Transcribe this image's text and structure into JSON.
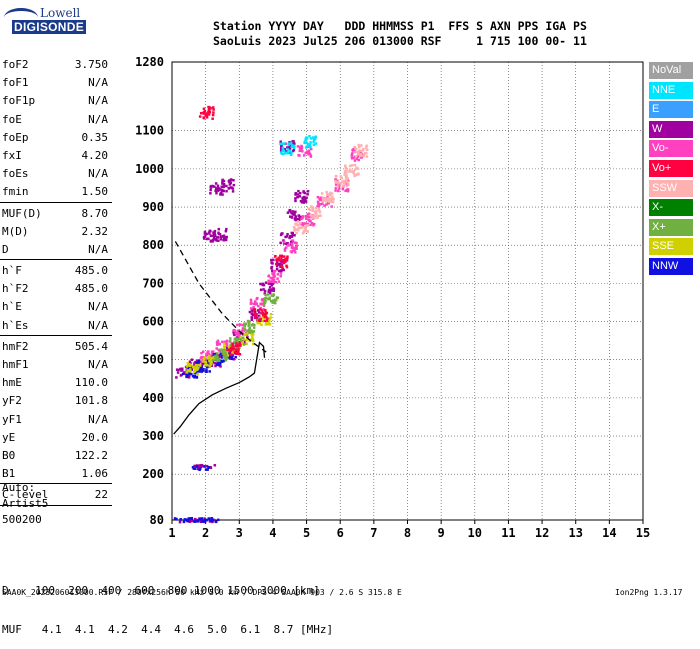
{
  "logo": {
    "top": "Lowell",
    "bottom": "DIGISONDE"
  },
  "header": {
    "line1": "Station YYYY DAY   DDD HHMMSS P1  FFS S AXN PPS IGA PS",
    "line2": "SaoLuis 2023 Jul25 206 013000 RSF     1 715 100 00- 11"
  },
  "params": [
    {
      "k": "foF2",
      "v": "3.750"
    },
    {
      "k": "foF1",
      "v": "N/A"
    },
    {
      "k": "foF1p",
      "v": "N/A"
    },
    {
      "k": "foE",
      "v": "N/A"
    },
    {
      "k": "foEp",
      "v": "0.35"
    },
    {
      "k": "fxI",
      "v": "4.20"
    },
    {
      "k": "foEs",
      "v": "N/A"
    },
    {
      "k": "fmin",
      "v": "1.50"
    },
    {
      "k": "MUF(D)",
      "v": "8.70"
    },
    {
      "k": "M(D)",
      "v": "2.32"
    },
    {
      "k": "D",
      "v": "N/A"
    },
    {
      "k": "h`F",
      "v": "485.0"
    },
    {
      "k": "h`F2",
      "v": "485.0"
    },
    {
      "k": "h`E",
      "v": "N/A"
    },
    {
      "k": "h`Es",
      "v": "N/A"
    },
    {
      "k": "hmF2",
      "v": "505.4"
    },
    {
      "k": "hmF1",
      "v": "N/A"
    },
    {
      "k": "hmE",
      "v": "110.0"
    },
    {
      "k": "yF2",
      "v": "101.8"
    },
    {
      "k": "yF1",
      "v": "N/A"
    },
    {
      "k": "yE",
      "v": "20.0"
    },
    {
      "k": "B0",
      "v": "122.2"
    },
    {
      "k": "B1",
      "v": "1.06"
    },
    {
      "k": "C-level",
      "v": "22"
    }
  ],
  "autoscale": {
    "label": "Auto:",
    "tool": "Artist5",
    "code": "500200"
  },
  "legend": [
    {
      "label": "NoVal",
      "color": "#a0a0a0"
    },
    {
      "label": "NNE",
      "color": "#00e5ff"
    },
    {
      "label": "E",
      "color": "#3aa0ff"
    },
    {
      "label": "W",
      "color": "#a000a0"
    },
    {
      "label": "Vo-",
      "color": "#ff40c0"
    },
    {
      "label": "Vo+",
      "color": "#ff0040"
    },
    {
      "label": "SSW",
      "color": "#ffb0b0"
    },
    {
      "label": "X-",
      "color": "#008000"
    },
    {
      "label": "X+",
      "color": "#70b040"
    },
    {
      "label": "SSE",
      "color": "#d0d000"
    },
    {
      "label": "NNW",
      "color": "#1010e0"
    }
  ],
  "footer": {
    "d_row": "D    100  200  400  600  800 1000 1500 3000 [km]",
    "muf_row": "MUF   4.1  4.1  4.2  4.4  4.6  5.0  6.1  8.7 [MHz]",
    "filename": "SAA0K_2023206013000.RSF / 280fx256h 50 kHz 5.0 km / DPS-4 SAA0K 903 / 2.6 S 315.8 E",
    "version": "Ion2Png 1.3.17"
  },
  "chart_data": {
    "type": "scatter",
    "x_ticks": [
      1,
      2,
      3,
      4,
      5,
      6,
      7,
      8,
      9,
      10,
      11,
      12,
      13,
      14,
      15
    ],
    "y_ticks": [
      80,
      200,
      300,
      400,
      500,
      600,
      700,
      800,
      900,
      1000,
      1100,
      1280
    ],
    "xlim": [
      1,
      15
    ],
    "ylim": [
      80,
      1280
    ],
    "series": [
      {
        "name": "W",
        "color": "#a000a0",
        "points": [
          [
            1.3,
            470
          ],
          [
            1.7,
            490
          ],
          [
            2.2,
            500
          ],
          [
            2.6,
            520
          ],
          [
            3.0,
            560
          ],
          [
            3.4,
            620
          ],
          [
            3.8,
            690
          ],
          [
            4.1,
            750
          ],
          [
            4.4,
            820
          ],
          [
            4.6,
            880
          ],
          [
            4.8,
            930
          ],
          [
            2.3,
            950
          ],
          [
            2.6,
            960
          ],
          [
            2.1,
            825
          ],
          [
            2.4,
            830
          ],
          [
            1.9,
            222
          ],
          [
            2.0,
            222
          ],
          [
            1.4,
            82
          ],
          [
            1.7,
            82
          ],
          [
            2.0,
            82
          ],
          [
            4.4,
            1060
          ]
        ]
      },
      {
        "name": "Vo-",
        "color": "#ff40c0",
        "points": [
          [
            2.0,
            510
          ],
          [
            2.5,
            540
          ],
          [
            3.0,
            580
          ],
          [
            3.5,
            650
          ],
          [
            4.0,
            720
          ],
          [
            4.5,
            800
          ],
          [
            5.0,
            870
          ],
          [
            5.5,
            920
          ],
          [
            6.0,
            960
          ],
          [
            6.5,
            1040
          ],
          [
            4.9,
            1050
          ]
        ]
      },
      {
        "name": "SSW",
        "color": "#ffb0b0",
        "points": [
          [
            4.8,
            850
          ],
          [
            5.2,
            890
          ],
          [
            5.6,
            930
          ],
          [
            6.0,
            970
          ],
          [
            6.3,
            1000
          ],
          [
            6.6,
            1050
          ]
        ]
      },
      {
        "name": "NNW",
        "color": "#1010e0",
        "points": [
          [
            1.5,
            470
          ],
          [
            1.9,
            485
          ],
          [
            2.3,
            505
          ],
          [
            2.7,
            520
          ],
          [
            1.3,
            83
          ],
          [
            1.6,
            83
          ],
          [
            1.9,
            83
          ],
          [
            2.1,
            83
          ],
          [
            1.8,
            220
          ]
        ]
      },
      {
        "name": "SSE",
        "color": "#d0d000",
        "points": [
          [
            1.6,
            478
          ],
          [
            2.1,
            500
          ],
          [
            2.7,
            530
          ],
          [
            3.2,
            560
          ],
          [
            3.7,
            610
          ]
        ]
      },
      {
        "name": "X+",
        "color": "#70b040",
        "points": [
          [
            2.4,
            515
          ],
          [
            2.9,
            545
          ],
          [
            3.3,
            590
          ],
          [
            3.9,
            660
          ]
        ]
      },
      {
        "name": "Vo+",
        "color": "#ff0040",
        "points": [
          [
            2.8,
            530
          ],
          [
            3.6,
            620
          ],
          [
            4.2,
            760
          ],
          [
            2.0,
            1150
          ]
        ]
      },
      {
        "name": "NNE",
        "color": "#00e5ff",
        "points": [
          [
            5.1,
            1075
          ],
          [
            4.4,
            1055
          ]
        ]
      }
    ],
    "profile": [
      [
        3.75,
        505
      ],
      [
        3.72,
        535
      ],
      [
        3.6,
        545
      ],
      [
        3.45,
        465
      ],
      [
        3.3,
        455
      ],
      [
        3.0,
        440
      ],
      [
        2.6,
        425
      ],
      [
        2.2,
        408
      ],
      [
        1.8,
        385
      ],
      [
        1.5,
        355
      ],
      [
        1.25,
        325
      ],
      [
        1.05,
        305
      ]
    ],
    "dashed_trace": [
      [
        1.1,
        810
      ],
      [
        1.8,
        700
      ],
      [
        2.5,
        620
      ],
      [
        3.0,
        575
      ],
      [
        3.4,
        545
      ],
      [
        3.8,
        520
      ]
    ]
  }
}
